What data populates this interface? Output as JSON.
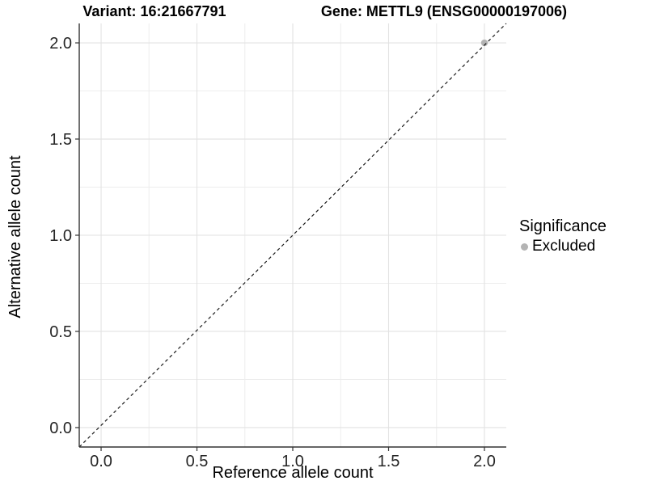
{
  "titles": {
    "variant": "Variant: 16:21667791",
    "gene": "Gene: METTL9 (ENSG00000197006)"
  },
  "axes": {
    "x_label": "Reference allele count",
    "y_label": "Alternative allele count"
  },
  "legend": {
    "title": "Significance",
    "items": [
      {
        "label": "Excluded",
        "color": "#b4b4b4"
      }
    ]
  },
  "colors": {
    "background": "#ffffff",
    "axis_line": "#333333",
    "tick_label": "#262626",
    "grid_major": "#e2e2e2",
    "grid_minor": "#ededed",
    "reference_line": "#1a1a1a",
    "point": "#b4b4b4"
  },
  "chart_data": {
    "type": "scatter",
    "title": "Variant: 16:21667791 — Gene: METTL9 (ENSG00000197006)",
    "xlabel": "Reference allele count",
    "ylabel": "Alternative allele count",
    "xlim": [
      -0.114,
      2.114
    ],
    "ylim": [
      -0.101,
      2.101
    ],
    "x_ticks": [
      0.0,
      0.5,
      1.0,
      1.5,
      2.0
    ],
    "y_ticks": [
      0.0,
      0.5,
      1.0,
      1.5,
      2.0
    ],
    "x_tick_labels": [
      "0.0",
      "0.5",
      "1.0",
      "1.5",
      "2.0"
    ],
    "y_tick_labels": [
      "0.0",
      "0.5",
      "1.0",
      "1.5",
      "2.0"
    ],
    "minor_ticks_x": [
      0.25,
      0.75,
      1.25,
      1.75
    ],
    "minor_ticks_y": [
      0.25,
      0.75,
      1.25,
      1.75
    ],
    "grid": true,
    "legend_position": "right",
    "series": [
      {
        "name": "Excluded",
        "color": "#b4b4b4",
        "points": [
          {
            "x": 2.0,
            "y": 2.0
          }
        ]
      }
    ],
    "reference_line": {
      "kind": "abline",
      "slope": 1,
      "intercept": 0,
      "style": "dashed",
      "color": "#1a1a1a"
    }
  }
}
